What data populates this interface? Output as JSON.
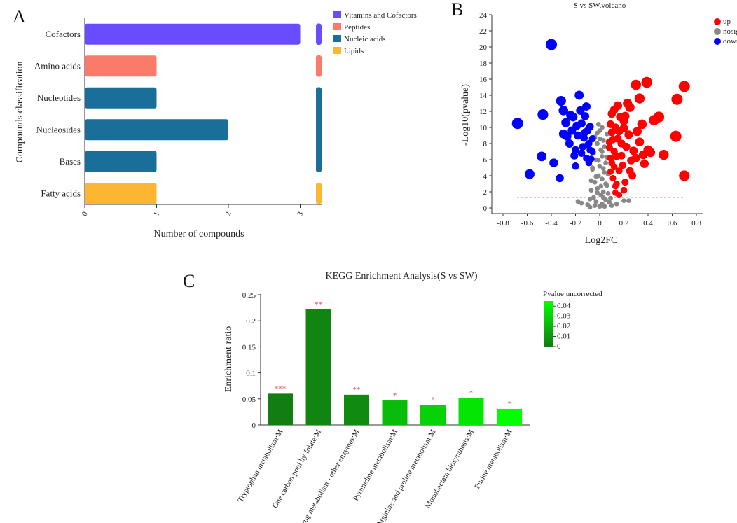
{
  "panels": {
    "a": "A",
    "b": "B",
    "c": "C"
  },
  "colors": {
    "vitamins": "#6a4cff",
    "peptides": "#fb7b6b",
    "nucleic": "#1a6f9a",
    "lipids": "#fdb632",
    "up": "#ff0000",
    "nosig": "#888888",
    "down": "#0000ff",
    "threshold": "#f08080"
  },
  "chart_data": [
    {
      "id": "compound_classification",
      "type": "bar",
      "orientation": "horizontal",
      "categories": [
        "Cofactors",
        "Amino acids",
        "Nucleotides",
        "Nucleosides",
        "Bases",
        "Fatty acids"
      ],
      "values": [
        3,
        1,
        1,
        2,
        1,
        1
      ],
      "groups": [
        "vitamins",
        "peptides",
        "nucleic",
        "nucleic",
        "nucleic",
        "lipids"
      ],
      "legend": [
        {
          "key": "vitamins",
          "label": "Vitamins and Cofactors"
        },
        {
          "key": "peptides",
          "label": "Peptides"
        },
        {
          "key": "nucleic",
          "label": "Nucleic acids"
        },
        {
          "key": "lipids",
          "label": "Lipids"
        }
      ],
      "xlabel": "Number of compounds",
      "ylabel": "Compounds classification",
      "xticks": [
        "0",
        "1",
        "2",
        "3"
      ],
      "xlim": [
        0,
        3.3
      ]
    },
    {
      "id": "volcano",
      "type": "scatter",
      "title": "S vs SW.volcano",
      "xlabel": "Log2FC",
      "ylabel": "-Log10(pvalue)",
      "xlim": [
        -0.85,
        0.85
      ],
      "ylim": [
        -0.5,
        24
      ],
      "xticks": [
        "-0.8",
        "-0.6",
        "-0.4",
        "-0.2",
        "0",
        "0.2",
        "0.4",
        "0.6",
        "0.8"
      ],
      "yticks": [
        "0",
        "2",
        "4",
        "6",
        "8",
        "10",
        "12",
        "14",
        "16",
        "18",
        "20",
        "22",
        "24"
      ],
      "threshold_y": 1.3,
      "legend": [
        {
          "key": "up",
          "label": "up"
        },
        {
          "key": "nosig",
          "label": "nosig"
        },
        {
          "key": "down",
          "label": "down"
        }
      ],
      "up": [
        [
          0.7,
          15.1
        ],
        [
          0.64,
          13.5
        ],
        [
          0.7,
          4.0
        ],
        [
          0.63,
          8.9
        ],
        [
          0.53,
          6.6
        ],
        [
          0.49,
          11.3
        ],
        [
          0.45,
          10.9
        ],
        [
          0.39,
          15.6
        ],
        [
          0.3,
          15.3
        ],
        [
          0.35,
          10.4
        ],
        [
          0.33,
          13.6
        ],
        [
          0.4,
          7.2
        ],
        [
          0.37,
          5.5
        ],
        [
          0.31,
          9.5
        ],
        [
          0.27,
          4.0
        ],
        [
          0.25,
          12.5
        ],
        [
          0.21,
          11.4
        ],
        [
          0.23,
          13.0
        ],
        [
          0.2,
          9.9
        ],
        [
          0.18,
          8.0
        ],
        [
          0.15,
          12.7
        ],
        [
          0.13,
          10.0
        ],
        [
          0.12,
          7.0
        ],
        [
          0.11,
          8.5
        ],
        [
          0.1,
          9.4
        ],
        [
          0.09,
          6.2
        ],
        [
          0.12,
          5.1
        ],
        [
          0.14,
          3.0
        ],
        [
          0.16,
          4.6
        ],
        [
          0.18,
          6.5
        ],
        [
          0.22,
          7.6
        ],
        [
          0.26,
          5.9
        ],
        [
          0.28,
          7.1
        ],
        [
          0.33,
          8.2
        ],
        [
          0.36,
          6.6
        ],
        [
          0.42,
          6.9
        ],
        [
          0.2,
          10.8
        ],
        [
          0.17,
          11.3
        ],
        [
          0.1,
          11.7
        ],
        [
          0.08,
          8.2
        ],
        [
          0.09,
          4.5
        ],
        [
          0.11,
          3.7
        ],
        [
          0.13,
          2.7
        ],
        [
          0.08,
          7.5
        ],
        [
          0.1,
          5.6
        ],
        [
          0.14,
          6.4
        ],
        [
          0.15,
          8.6
        ],
        [
          0.19,
          5.3
        ],
        [
          0.24,
          9.1
        ],
        [
          0.16,
          9.5
        ],
        [
          0.12,
          12.2
        ],
        [
          0.09,
          10.4
        ],
        [
          0.2,
          2.2
        ],
        [
          0.16,
          1.6
        ],
        [
          0.13,
          1.9
        ],
        [
          0.3,
          6.2
        ],
        [
          0.25,
          4.6
        ],
        [
          0.21,
          3.2
        ]
      ],
      "down": [
        [
          -0.68,
          10.5
        ],
        [
          -0.4,
          20.3
        ],
        [
          -0.58,
          4.2
        ],
        [
          -0.47,
          11.6
        ],
        [
          -0.48,
          6.4
        ],
        [
          -0.38,
          5.6
        ],
        [
          -0.33,
          3.7
        ],
        [
          -0.32,
          13.3
        ],
        [
          -0.3,
          12.1
        ],
        [
          -0.3,
          9.2
        ],
        [
          -0.28,
          10.6
        ],
        [
          -0.25,
          8.0
        ],
        [
          -0.22,
          11.3
        ],
        [
          -0.21,
          6.5
        ],
        [
          -0.2,
          5.2
        ],
        [
          -0.18,
          9.0
        ],
        [
          -0.17,
          14.0
        ],
        [
          -0.16,
          12.1
        ],
        [
          -0.15,
          10.5
        ],
        [
          -0.14,
          7.6
        ],
        [
          -0.13,
          8.7
        ],
        [
          -0.12,
          11.4
        ],
        [
          -0.11,
          12.6
        ],
        [
          -0.11,
          6.2
        ],
        [
          -0.1,
          9.6
        ],
        [
          -0.09,
          8.0
        ],
        [
          -0.08,
          10.1
        ],
        [
          -0.08,
          7.2
        ],
        [
          -0.07,
          6.1
        ],
        [
          -0.06,
          8.6
        ],
        [
          -0.06,
          7.0
        ],
        [
          -0.27,
          8.9
        ],
        [
          -0.23,
          9.6
        ],
        [
          -0.2,
          7.2
        ],
        [
          -0.19,
          10.2
        ],
        [
          -0.15,
          6.8
        ],
        [
          -0.12,
          9.4
        ],
        [
          -0.1,
          7.8
        ],
        [
          -0.09,
          5.6
        ],
        [
          -0.24,
          11.5
        ]
      ],
      "nosig": [
        [
          0.0,
          0.2
        ],
        [
          0.02,
          0.5
        ],
        [
          -0.03,
          0.8
        ],
        [
          0.05,
          1.0
        ],
        [
          -0.05,
          1.3
        ],
        [
          0.01,
          1.6
        ],
        [
          0.03,
          2.0
        ],
        [
          -0.02,
          2.4
        ],
        [
          0.06,
          2.8
        ],
        [
          -0.04,
          3.2
        ],
        [
          0.02,
          3.6
        ],
        [
          -0.01,
          4.0
        ],
        [
          0.04,
          4.4
        ],
        [
          -0.06,
          4.8
        ],
        [
          0.0,
          5.2
        ],
        [
          0.05,
          5.6
        ],
        [
          -0.03,
          6.0
        ],
        [
          0.02,
          6.4
        ],
        [
          -0.05,
          6.8
        ],
        [
          0.01,
          7.2
        ],
        [
          0.04,
          7.6
        ],
        [
          -0.02,
          8.0
        ],
        [
          0.03,
          8.4
        ],
        [
          -0.04,
          8.8
        ],
        [
          0.06,
          9.2
        ],
        [
          0.0,
          9.6
        ],
        [
          0.02,
          10.0
        ],
        [
          -0.01,
          10.4
        ],
        [
          0.05,
          3.0
        ],
        [
          -0.07,
          2.2
        ],
        [
          0.07,
          1.8
        ],
        [
          -0.08,
          1.1
        ],
        [
          0.08,
          0.7
        ],
        [
          -0.1,
          0.4
        ],
        [
          0.1,
          0.3
        ],
        [
          -0.15,
          0.6
        ],
        [
          0.14,
          0.5
        ],
        [
          -0.18,
          0.8
        ],
        [
          0.2,
          0.9
        ],
        [
          -0.04,
          0.3
        ],
        [
          0.04,
          0.2
        ],
        [
          -0.08,
          0.1
        ],
        [
          0.09,
          1.2
        ],
        [
          0.24,
          0.9
        ],
        [
          0.03,
          1.3
        ],
        [
          -0.02,
          1.9
        ],
        [
          0.01,
          2.7
        ],
        [
          -0.03,
          3.9
        ],
        [
          0.03,
          4.9
        ],
        [
          -0.01,
          5.9
        ],
        [
          0.02,
          7.0
        ],
        [
          -0.02,
          9.3
        ],
        [
          0.0,
          8.6
        ],
        [
          0.06,
          6.3
        ],
        [
          -0.06,
          5.0
        ],
        [
          0.07,
          4.2
        ],
        [
          -0.07,
          3.4
        ]
      ]
    },
    {
      "id": "kegg",
      "type": "bar",
      "title": "KEGG Enrichment Analysis(S vs SW)",
      "ylabel": "Enrichment ratio",
      "categories": [
        "Tryptophan metabolism:M",
        "One carbon pool by folate:M",
        "Drug metabolism - other enzymes:M",
        "Pyrimidine metabolism:M",
        "Arginine and proline metabolism:M",
        "Monobactam biosynthesis:M",
        "Purine metabolism:M"
      ],
      "values": [
        0.06,
        0.222,
        0.058,
        0.047,
        0.039,
        0.052,
        0.031
      ],
      "pvalues": [
        0.0004,
        0.003,
        0.005,
        0.022,
        0.03,
        0.036,
        0.045
      ],
      "stars": [
        "***",
        "**",
        "**",
        "*",
        "*",
        "*",
        "*"
      ],
      "ylim": [
        0,
        0.25
      ],
      "yticks": [
        "0",
        "0.05",
        "0.1",
        "0.15",
        "0.2",
        "0.25"
      ],
      "colorbar": {
        "title": "Pvalue uncorrected",
        "ticks": [
          "0",
          "0.01",
          "0.02",
          "0.03",
          "0.04"
        ],
        "range": [
          0,
          0.045
        ]
      }
    }
  ]
}
